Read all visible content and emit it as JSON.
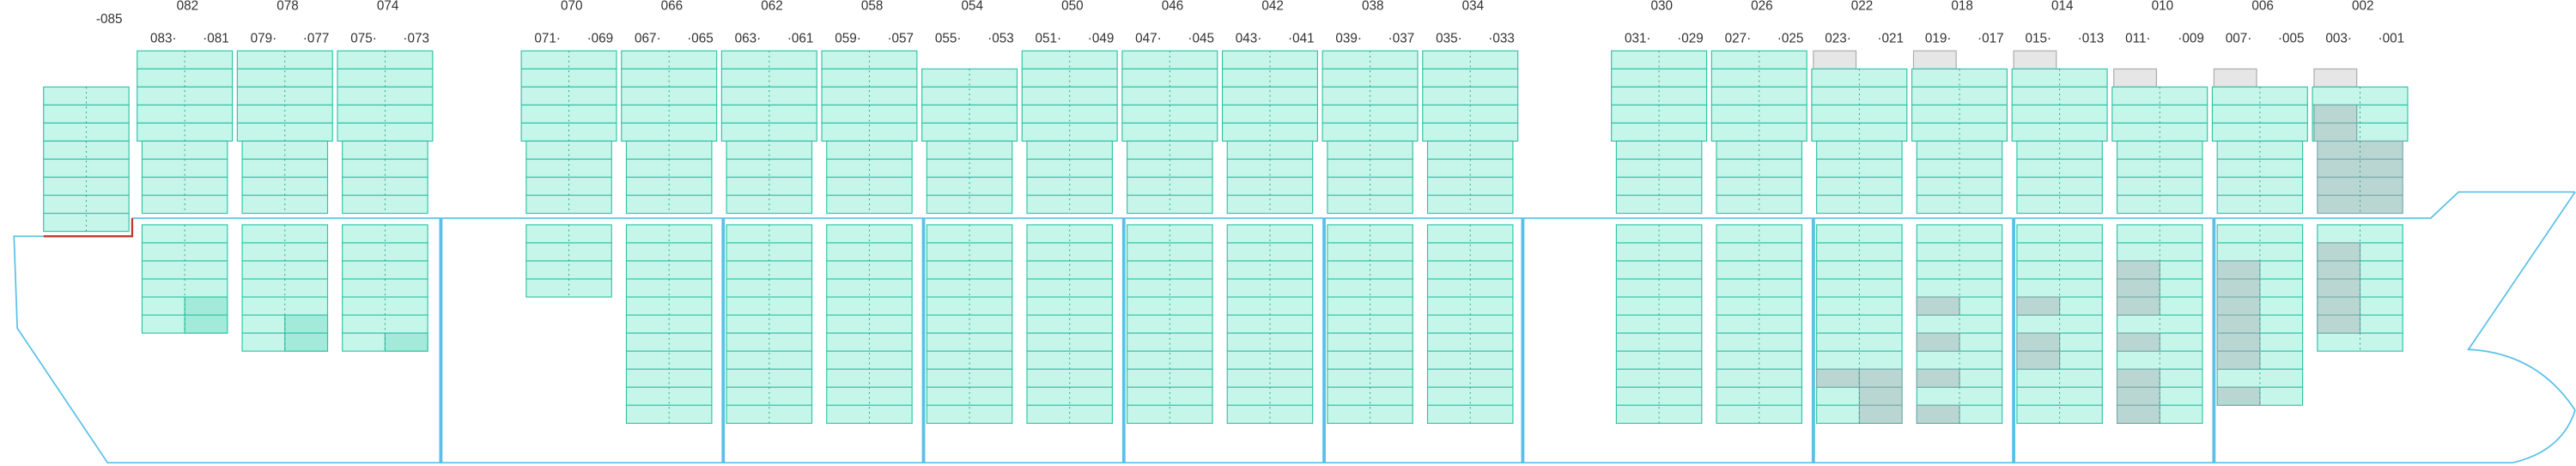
{
  "single_bay": {
    "label": "-085"
  },
  "bays": [
    {
      "left": "083·",
      "mid": "082",
      "right": "·081"
    },
    {
      "left": "079·",
      "mid": "078",
      "right": "·077"
    },
    {
      "left": "075·",
      "mid": "074",
      "right": "·073"
    },
    {
      "left": "071·",
      "mid": "070",
      "right": "·069"
    },
    {
      "left": "067·",
      "mid": "066",
      "right": "·065"
    },
    {
      "left": "063·",
      "mid": "062",
      "right": "·061"
    },
    {
      "left": "059·",
      "mid": "058",
      "right": "·057"
    },
    {
      "left": "055·",
      "mid": "054",
      "right": "·053"
    },
    {
      "left": "051·",
      "mid": "050",
      "right": "·049"
    },
    {
      "left": "047·",
      "mid": "046",
      "right": "·045"
    },
    {
      "left": "043·",
      "mid": "042",
      "right": "·041"
    },
    {
      "left": "039·",
      "mid": "038",
      "right": "·037"
    },
    {
      "left": "035·",
      "mid": "034",
      "right": "·033"
    },
    {
      "left": "031·",
      "mid": "030",
      "right": "·029"
    },
    {
      "left": "027·",
      "mid": "026",
      "right": "·025"
    },
    {
      "left": "023·",
      "mid": "022",
      "right": "·021"
    },
    {
      "left": "019·",
      "mid": "018",
      "right": "·017"
    },
    {
      "left": "015·",
      "mid": "014",
      "right": "·013"
    },
    {
      "left": "011·",
      "mid": "010",
      "right": "·009"
    },
    {
      "left": "007·",
      "mid": "006",
      "right": "·005"
    },
    {
      "left": "003·",
      "mid": "002",
      "right": "·001"
    }
  ]
}
